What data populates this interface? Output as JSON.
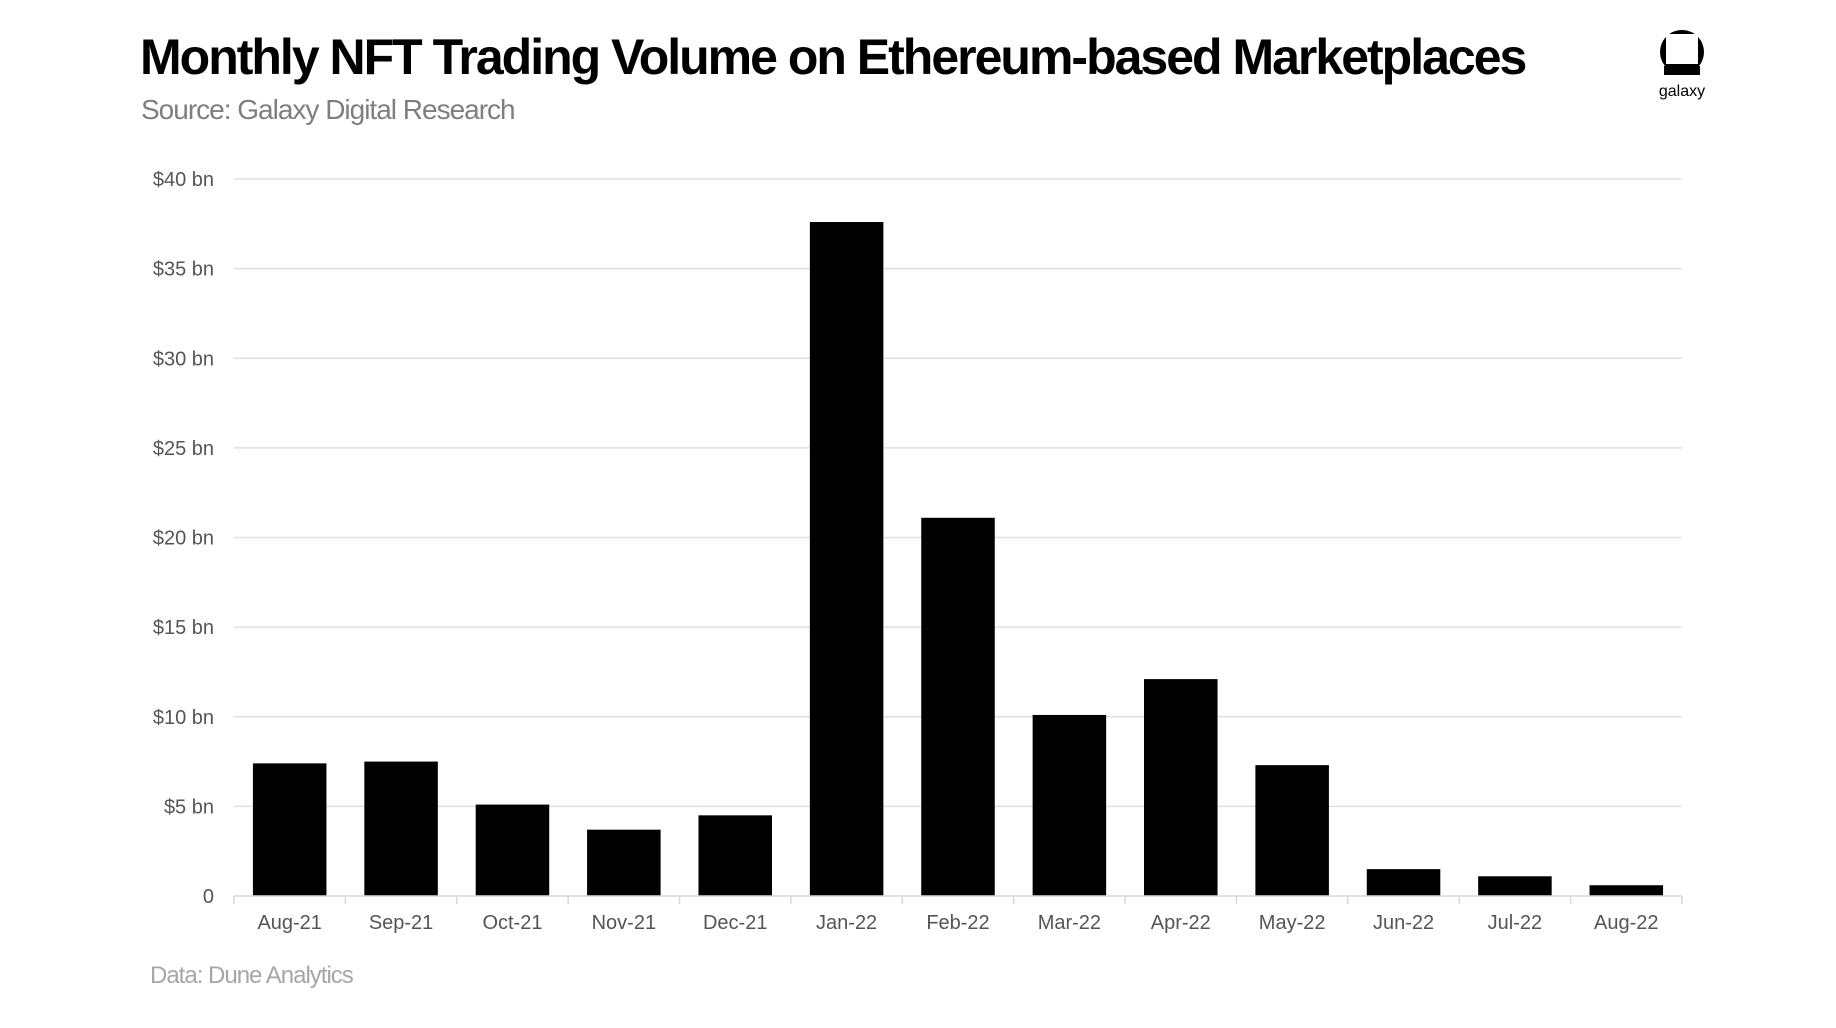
{
  "header": {
    "title": "Monthly NFT Trading Volume on Ethereum-based Marketplaces",
    "subtitle": "Source: Galaxy Digital Research"
  },
  "logo": {
    "icon": "galaxy-logo-icon",
    "text": "galaxy"
  },
  "footer": {
    "note": "Data: Dune Analytics"
  },
  "colors": {
    "bar": "#000000",
    "grid": "#e0e0e0",
    "axis_text": "#555555",
    "subtitle": "#7f7f7f",
    "footer": "#a6a6a6"
  },
  "chart_data": {
    "type": "bar",
    "title": "Monthly NFT Trading Volume on Ethereum-based Marketplaces",
    "xlabel": "",
    "ylabel": "",
    "categories": [
      "Aug-21",
      "Sep-21",
      "Oct-21",
      "Nov-21",
      "Dec-21",
      "Jan-22",
      "Feb-22",
      "Mar-22",
      "Apr-22",
      "May-22",
      "Jun-22",
      "Jul-22",
      "Aug-22"
    ],
    "values": [
      7.4,
      7.5,
      5.1,
      3.7,
      4.5,
      37.6,
      21.1,
      10.1,
      12.1,
      7.3,
      1.5,
      1.1,
      0.6
    ],
    "units": "USD billions",
    "ylim": [
      0,
      40
    ],
    "yticks": [
      0,
      5,
      10,
      15,
      20,
      25,
      30,
      35,
      40
    ],
    "ytick_labels": [
      "0",
      "$5 bn",
      "$10 bn",
      "$15 bn",
      "$20 bn",
      "$25 bn",
      "$30 bn",
      "$35 bn",
      "$40 bn"
    ],
    "grid": true,
    "legend": "none"
  }
}
